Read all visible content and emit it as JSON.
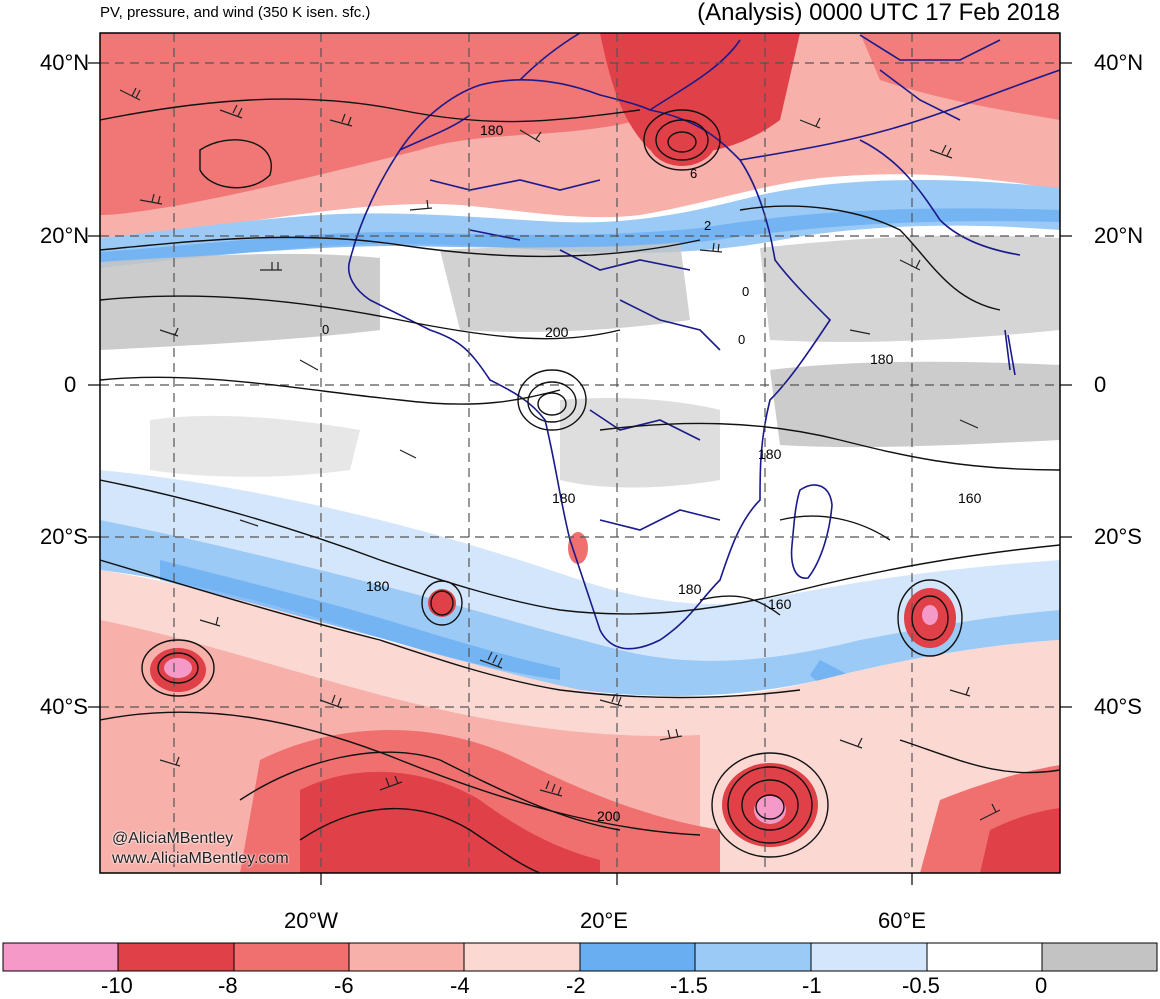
{
  "header": {
    "subtitle": "PV, pressure, and wind (350 K isen. sfc.)",
    "title": "(Analysis) 0000 UTC 17 Feb 2018"
  },
  "map": {
    "lat_labels": [
      {
        "lat": 40,
        "text": "40°N"
      },
      {
        "lat": 20,
        "text": "20°N"
      },
      {
        "lat": 0,
        "text": "0"
      },
      {
        "lat": -20,
        "text": "20°S"
      },
      {
        "lat": -40,
        "text": "40°S"
      }
    ],
    "lon_labels": [
      {
        "lon": -20,
        "text": "20°W"
      },
      {
        "lon": 20,
        "text": "20°E"
      },
      {
        "lon": 60,
        "text": "60°E"
      }
    ],
    "contour_labels": [
      "180",
      "6",
      "2",
      "0",
      "200",
      "0",
      "0",
      "180",
      "180",
      "180",
      "160",
      "180",
      "180",
      "160",
      "200"
    ],
    "credits": [
      "@AliciaMBentley",
      "www.AliciaMBentley.com"
    ]
  },
  "colorbar": {
    "labels": [
      "-10",
      "-8",
      "-6",
      "-4",
      "-2",
      "-1.5",
      "-1",
      "-0.5",
      "0"
    ],
    "colors": [
      "#f59ac8",
      "#e04048",
      "#f07070",
      "#f8b0aa",
      "#fbd8d2",
      "#6aaef2",
      "#9ccaf6",
      "#d4e6fb",
      "#ffffff",
      "#c3c3c3"
    ]
  }
}
